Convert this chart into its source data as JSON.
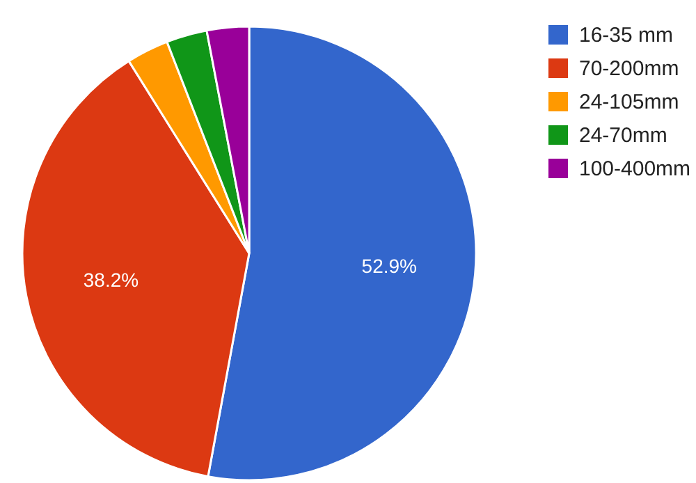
{
  "chart_data": {
    "type": "pie",
    "categories": [
      "16-35 mm",
      "70-200mm",
      "24-105mm",
      "24-70mm",
      "100-400mm"
    ],
    "values": [
      52.9,
      38.2,
      3.0,
      2.9,
      3.0
    ],
    "colors": [
      "#3366cc",
      "#dc3912",
      "#ff9900",
      "#109618",
      "#990099"
    ],
    "value_labels": [
      "52.9%",
      "38.2%",
      null,
      null,
      null
    ],
    "legend": "top right"
  }
}
